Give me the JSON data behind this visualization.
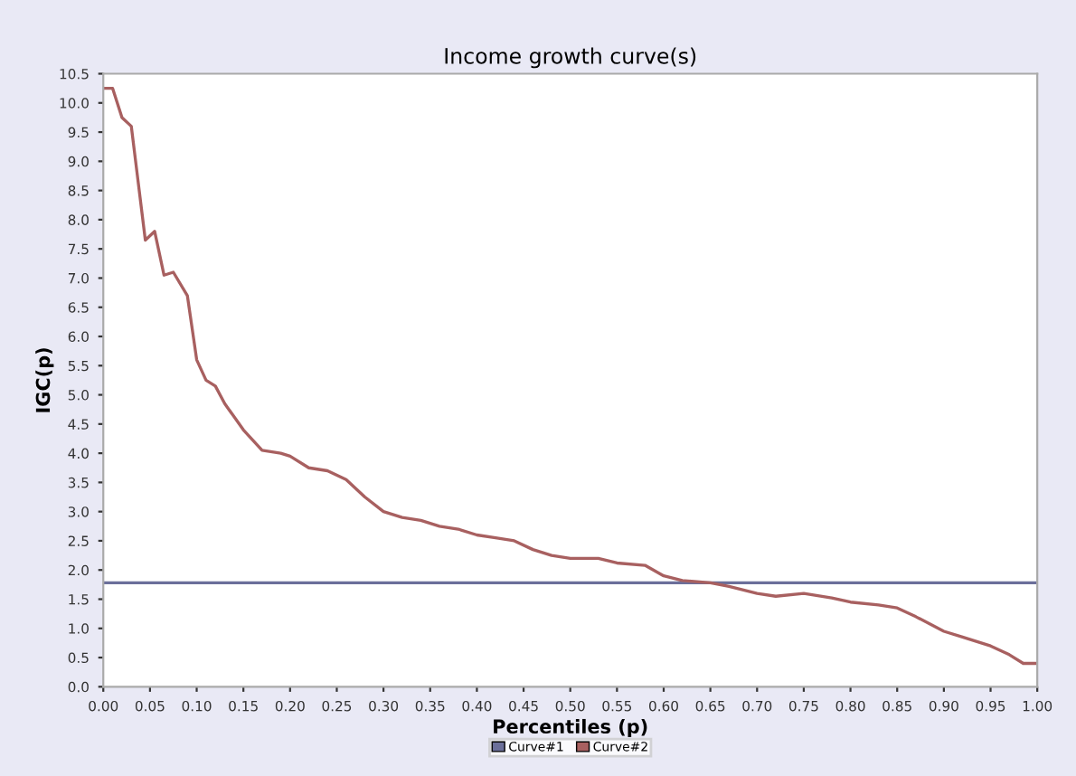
{
  "chart_data": {
    "type": "line",
    "title": "Income growth curve(s)",
    "xlabel": "Percentiles (p)",
    "ylabel": "IGC(p)",
    "xlim": [
      0,
      1
    ],
    "ylim": [
      0,
      10.5
    ],
    "xticks": [
      {
        "value": 0,
        "label": "0.00"
      },
      {
        "value": 0.05,
        "label": "0.05"
      },
      {
        "value": 0.1,
        "label": "0.10"
      },
      {
        "value": 0.15,
        "label": "0.15"
      },
      {
        "value": 0.2,
        "label": "0.20"
      },
      {
        "value": 0.25,
        "label": "0.25"
      },
      {
        "value": 0.3,
        "label": "0.30"
      },
      {
        "value": 0.35,
        "label": "0.35"
      },
      {
        "value": 0.4,
        "label": "0.40"
      },
      {
        "value": 0.45,
        "label": "0.45"
      },
      {
        "value": 0.5,
        "label": "0.50"
      },
      {
        "value": 0.55,
        "label": "0.55"
      },
      {
        "value": 0.6,
        "label": "0.60"
      },
      {
        "value": 0.65,
        "label": "0.65"
      },
      {
        "value": 0.7,
        "label": "0.70"
      },
      {
        "value": 0.75,
        "label": "0.75"
      },
      {
        "value": 0.8,
        "label": "0.80"
      },
      {
        "value": 0.85,
        "label": "0.85"
      },
      {
        "value": 0.9,
        "label": "0.90"
      },
      {
        "value": 0.95,
        "label": "0.95"
      },
      {
        "value": 1,
        "label": "1.00"
      }
    ],
    "yticks": [
      {
        "value": 0,
        "label": "0.0"
      },
      {
        "value": 0.5,
        "label": "0.5"
      },
      {
        "value": 1,
        "label": "1.0"
      },
      {
        "value": 1.5,
        "label": "1.5"
      },
      {
        "value": 2,
        "label": "2.0"
      },
      {
        "value": 2.5,
        "label": "2.5"
      },
      {
        "value": 3,
        "label": "3.0"
      },
      {
        "value": 3.5,
        "label": "3.5"
      },
      {
        "value": 4,
        "label": "4.0"
      },
      {
        "value": 4.5,
        "label": "4.5"
      },
      {
        "value": 5,
        "label": "5.0"
      },
      {
        "value": 5.5,
        "label": "5.5"
      },
      {
        "value": 6,
        "label": "6.0"
      },
      {
        "value": 6.5,
        "label": "6.5"
      },
      {
        "value": 7,
        "label": "7.0"
      },
      {
        "value": 7.5,
        "label": "7.5"
      },
      {
        "value": 8,
        "label": "8.0"
      },
      {
        "value": 8.5,
        "label": "8.5"
      },
      {
        "value": 9,
        "label": "9.0"
      },
      {
        "value": 9.5,
        "label": "9.5"
      },
      {
        "value": 10,
        "label": "10.0"
      },
      {
        "value": 10.5,
        "label": "10.5"
      }
    ],
    "grid": false,
    "legend": "bottom",
    "marker": "none",
    "line_style": "solid",
    "series": [
      {
        "name": "Curve#1",
        "color": "#6b6f9a",
        "x": [
          0,
          1
        ],
        "values": [
          1.78,
          1.78
        ]
      },
      {
        "name": "Curve#2",
        "color": "#a86060",
        "x": [
          0,
          0.01,
          0.02,
          0.03,
          0.045,
          0.055,
          0.065,
          0.075,
          0.09,
          0.1,
          0.11,
          0.12,
          0.13,
          0.15,
          0.17,
          0.19,
          0.2,
          0.22,
          0.24,
          0.26,
          0.28,
          0.3,
          0.32,
          0.34,
          0.36,
          0.38,
          0.4,
          0.42,
          0.44,
          0.46,
          0.48,
          0.5,
          0.53,
          0.55,
          0.58,
          0.6,
          0.62,
          0.65,
          0.67,
          0.7,
          0.72,
          0.75,
          0.78,
          0.8,
          0.83,
          0.85,
          0.87,
          0.9,
          0.92,
          0.95,
          0.97,
          0.985,
          1
        ],
        "values": [
          10.25,
          10.25,
          9.75,
          9.6,
          7.65,
          7.8,
          7.05,
          7.1,
          6.7,
          5.6,
          5.25,
          5.15,
          4.85,
          4.4,
          4.05,
          4.0,
          3.95,
          3.75,
          3.7,
          3.55,
          3.25,
          3.0,
          2.9,
          2.85,
          2.75,
          2.7,
          2.6,
          2.55,
          2.5,
          2.35,
          2.25,
          2.2,
          2.2,
          2.12,
          2.08,
          1.9,
          1.82,
          1.78,
          1.72,
          1.6,
          1.55,
          1.6,
          1.52,
          1.45,
          1.4,
          1.35,
          1.2,
          0.95,
          0.85,
          0.7,
          0.55,
          0.4,
          0.4
        ]
      }
    ]
  }
}
